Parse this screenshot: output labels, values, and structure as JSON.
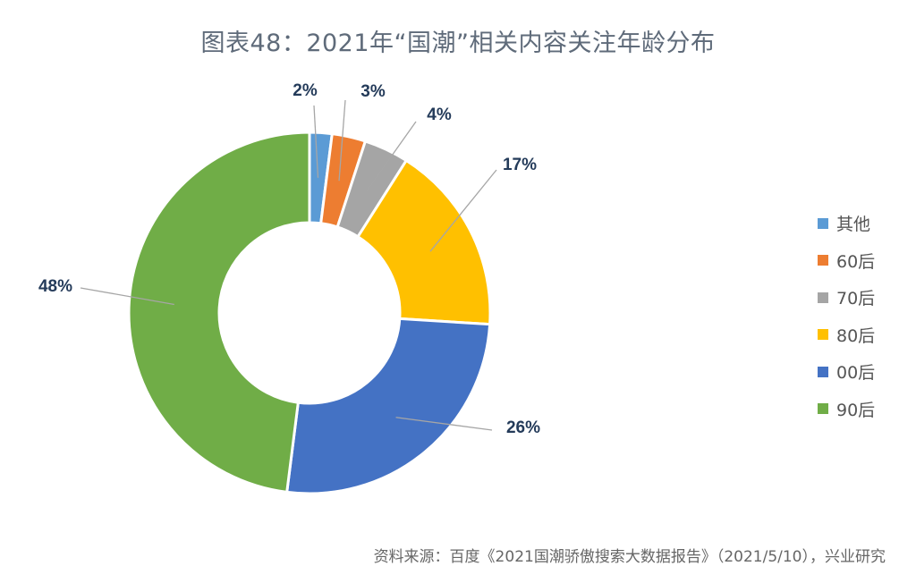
{
  "title": "图表48：2021年“国潮”相关内容关注年龄分布",
  "source": "资料来源：百度《2021国潮骄傲搜索大数据报告》（2021/5/10），兴业研究",
  "chart_data": {
    "type": "pie",
    "title": "图表48：2021年“国潮”相关内容关注年龄分布",
    "categories": [
      "其他",
      "60后",
      "70后",
      "80后",
      "00后",
      "90后"
    ],
    "values": [
      2,
      3,
      4,
      17,
      26,
      48
    ],
    "labels": [
      "2%",
      "3%",
      "4%",
      "17%",
      "26%",
      "48%"
    ],
    "colors": [
      "#5b9bd5",
      "#ed7d31",
      "#a5a5a5",
      "#ffc000",
      "#4472c4",
      "#70ad47"
    ],
    "legend_position": "right",
    "donut": true
  }
}
